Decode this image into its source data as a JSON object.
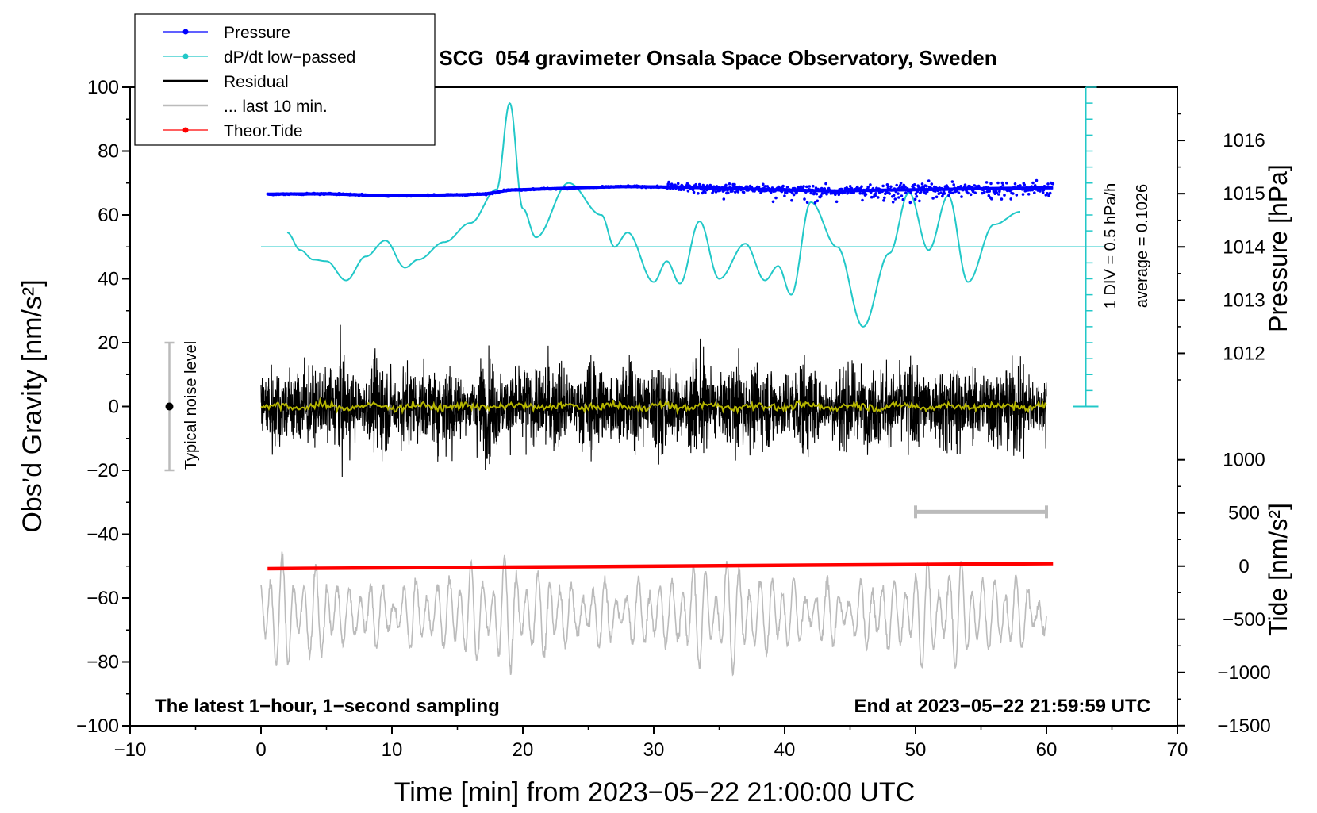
{
  "chart_data": {
    "type": "line",
    "title": "SCG_054 gravimeter Onsala Space Observatory, Sweden",
    "xlabel": "Time [min] from 2023−05−22 21:00:00 UTC",
    "ylabel_left": "Obs’d Gravity [nm/s²]",
    "ylabel_right_top": "Pressure [hPa]",
    "ylabel_right_bottom": "Tide [nm/s²]",
    "xlim": [
      -10,
      70
    ],
    "ylim": [
      -100,
      100
    ],
    "x_ticks": [
      "−10",
      "0",
      "10",
      "20",
      "30",
      "40",
      "50",
      "60",
      "70"
    ],
    "x_tick_values": [
      -10,
      0,
      10,
      20,
      30,
      40,
      50,
      60,
      70
    ],
    "y_ticks": [
      "−100",
      "−80",
      "−60",
      "−40",
      "−20",
      "0",
      "20",
      "40",
      "60",
      "80",
      "100"
    ],
    "y_tick_values": [
      -100,
      -80,
      -60,
      -40,
      -20,
      0,
      20,
      40,
      60,
      80,
      100
    ],
    "pressure_axis": {
      "ticks": [
        "1012",
        "1013",
        "1014",
        "1015",
        "1016"
      ],
      "tick_values": [
        1012,
        1013,
        1014,
        1015,
        1016
      ],
      "ref_hpa": 1014,
      "ref_gravity": 50,
      "gravity_per_hpa": 16.67
    },
    "tide_axis": {
      "ticks": [
        "−1500",
        "−1000",
        "−500",
        "0",
        "500",
        "1000"
      ],
      "tick_values": [
        -1500,
        -1000,
        -500,
        0,
        500,
        1000
      ],
      "ref_tide": 0,
      "ref_gravity": -50,
      "gravity_per_unit": 0.0333
    },
    "legend": [
      "Pressure",
      "dP/dt low−passed",
      "Residual",
      "... last 10 min.",
      "Theor.Tide"
    ],
    "legend_position": "top-left",
    "annotations": {
      "bottom_left": "The latest 1−hour, 1−second sampling",
      "bottom_right": "End at 2023−05−22 21:59:59 UTC",
      "dpdt_scale": "1 DIV = 0.5 hPa/h",
      "dpdt_average": "average = 0.1026",
      "noise_label": "Typical noise level"
    },
    "noise_bar": {
      "x": -7,
      "center": 0,
      "half_range": 20
    },
    "dpdt_baseline": 50,
    "dpdt_scale_bar": {
      "x": 63,
      "from": 0,
      "to": 100,
      "div": 5
    },
    "last_10_min_bar": {
      "from": 50,
      "to": 60,
      "y": -33
    },
    "series": [
      {
        "name": "Pressure",
        "color": "#0000ff",
        "x": [
          0.5,
          5,
          10,
          15,
          17,
          19,
          22,
          25,
          28,
          32,
          36,
          40,
          44,
          48,
          52,
          56,
          60.5
        ],
        "y": [
          66.5,
          66.6,
          66.0,
          66.3,
          66.5,
          67.8,
          68.2,
          68.6,
          68.9,
          68.7,
          68.3,
          67.8,
          67.5,
          67.8,
          68.0,
          68.3,
          68.5
        ]
      },
      {
        "name": "dP/dt low−passed",
        "color": "#22c8c8",
        "x": [
          2,
          3,
          4,
          5,
          6.5,
          8,
          9.5,
          11,
          12,
          14,
          16,
          18,
          19,
          20,
          21,
          23.5,
          26,
          27,
          28,
          30,
          31,
          32,
          33.5,
          35,
          37,
          38.5,
          39.5,
          40.5,
          42,
          44,
          46,
          48,
          49.5,
          51,
          52.5,
          54,
          56,
          58
        ],
        "y": [
          54.5,
          49,
          46,
          45.5,
          39.5,
          47,
          52,
          43.5,
          46,
          51.5,
          57.5,
          68,
          95,
          62,
          53,
          70,
          60,
          50,
          54.5,
          39,
          45.5,
          38.5,
          58,
          40,
          51,
          39.5,
          44,
          35,
          64,
          50,
          25,
          48,
          67,
          49,
          66,
          39,
          57,
          61
        ]
      },
      {
        "name": "Residual",
        "color": "#000000",
        "x_range": [
          0,
          60
        ],
        "typical_amplitude": 20,
        "max": 28,
        "min": -26
      },
      {
        "name": "Residual smoothed",
        "color": "#b5b500",
        "x_range": [
          0,
          60
        ],
        "approx_value": 0
      },
      {
        "name": "... last 10 min.",
        "color": "#bbbbbb",
        "x_range": [
          0,
          60
        ],
        "center": -65,
        "amplitude": 15
      },
      {
        "name": "Theor.Tide",
        "color": "#ff0000",
        "x": [
          0.5,
          60.5
        ],
        "y": [
          -50.8,
          -49.2
        ]
      }
    ]
  }
}
